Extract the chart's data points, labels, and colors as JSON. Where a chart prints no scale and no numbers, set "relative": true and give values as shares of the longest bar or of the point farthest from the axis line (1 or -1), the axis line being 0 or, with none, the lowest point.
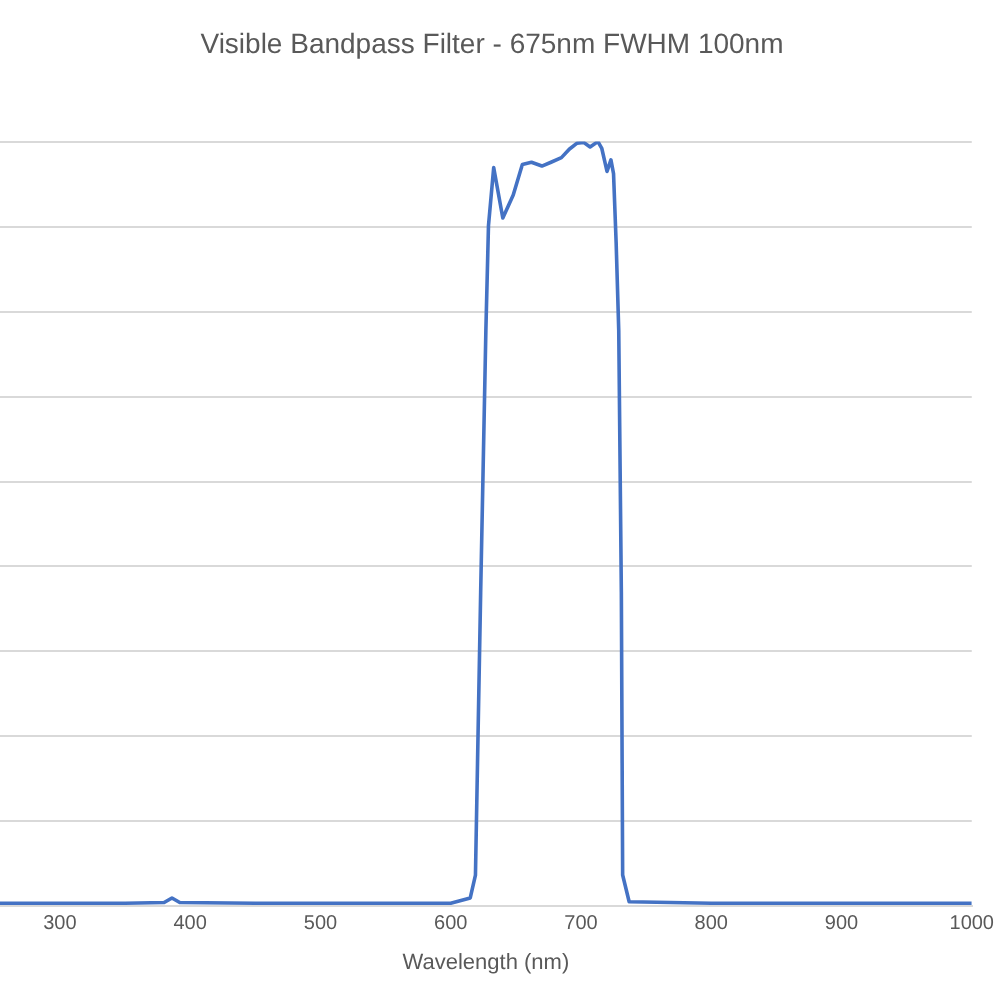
{
  "chart_data": {
    "type": "line",
    "title": "Visible Bandpass Filter - 675nm FWHM 100nm",
    "xlabel": "Wavelength (nm)",
    "relative": true,
    "grid": "y",
    "legend": false,
    "marker": "none",
    "line_style": "solid",
    "xlim": [
      254,
      1000
    ],
    "xticks": [
      300,
      400,
      500,
      600,
      700,
      800,
      900,
      1000
    ],
    "series": [
      {
        "color": "#4472c4",
        "x": [
          254,
          350,
          380,
          386,
          392,
          450,
          600,
          615,
          619,
          623,
          627,
          629,
          633,
          640,
          648,
          655,
          662,
          670,
          677,
          685,
          691,
          697,
          702,
          707,
          713,
          716,
          720,
          723,
          725,
          727,
          729,
          731,
          732,
          737,
          800,
          900,
          1000
        ],
        "values": [
          0.003,
          0.003,
          0.004,
          0.01,
          0.004,
          0.003,
          0.003,
          0.01,
          0.04,
          0.41,
          0.753,
          0.89,
          0.966,
          0.9,
          0.93,
          0.97,
          0.973,
          0.968,
          0.973,
          0.979,
          0.99,
          0.998,
          0.999,
          0.993,
          1,
          0.991,
          0.961,
          0.976,
          0.958,
          0.868,
          0.753,
          0.41,
          0.04,
          0.005,
          0.003,
          0.003,
          0.003
        ]
      }
    ]
  }
}
